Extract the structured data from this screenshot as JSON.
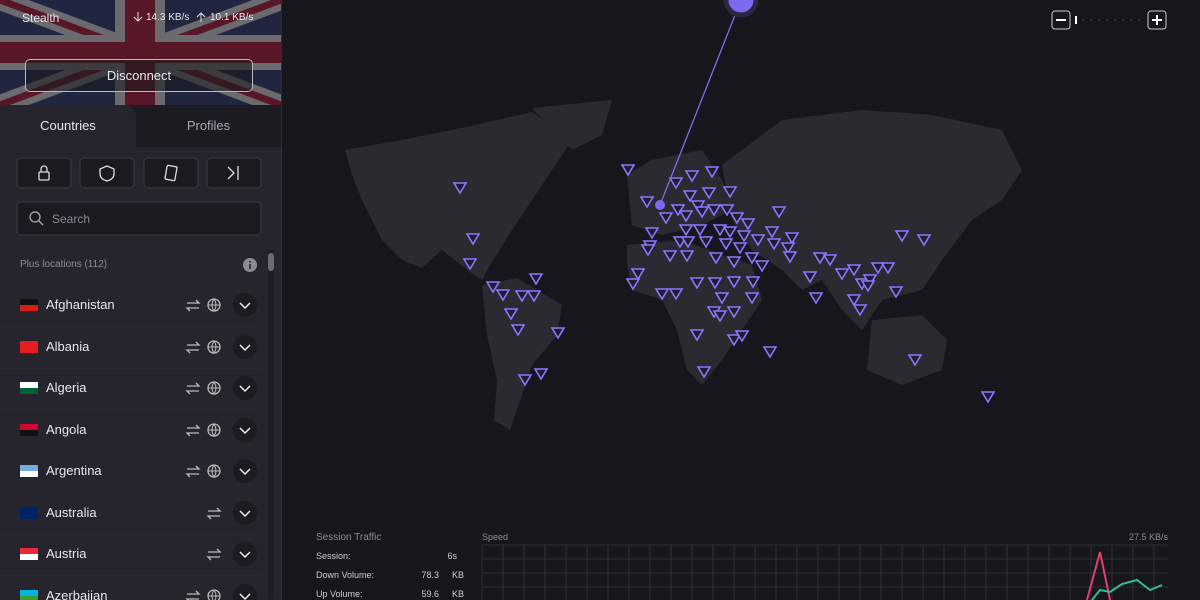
{
  "connection": {
    "protocol": "Stealth",
    "download": "14.3 KB/s",
    "upload": "10.1 KB/s",
    "button": "Disconnect"
  },
  "tabs": [
    "Countries",
    "Profiles"
  ],
  "search_placeholder": "Search",
  "section_label": "Plus locations (112)",
  "countries": [
    {
      "name": "Afghanistan",
      "globe": true
    },
    {
      "name": "Albania",
      "globe": true
    },
    {
      "name": "Algeria",
      "globe": true
    },
    {
      "name": "Angola",
      "globe": true
    },
    {
      "name": "Argentina",
      "globe": true
    },
    {
      "name": "Australia",
      "globe": false
    },
    {
      "name": "Austria",
      "globe": false
    },
    {
      "name": "Azerbaijan",
      "globe": true
    }
  ],
  "session": {
    "title": "Session Traffic",
    "rows": [
      {
        "label": "Session:",
        "value": "6s"
      },
      {
        "label": "Down Volume:",
        "value": "78.3",
        "unit": "KB"
      },
      {
        "label": "Up Volume:",
        "value": "59.6",
        "unit": "KB"
      }
    ]
  },
  "speed": {
    "title": "Speed",
    "max": "27.5 KB/s"
  }
}
